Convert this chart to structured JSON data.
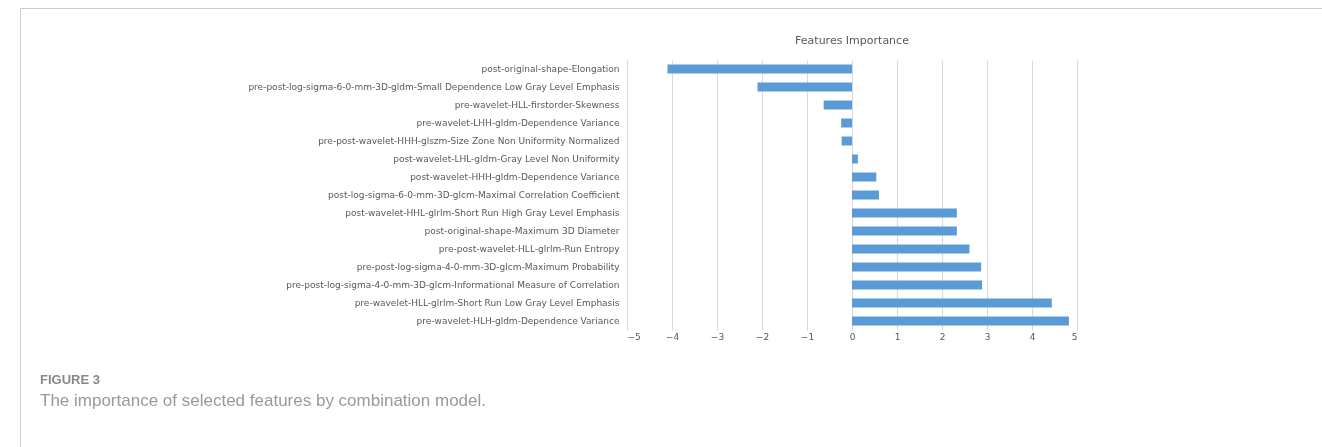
{
  "chart_data": {
    "type": "bar",
    "orientation": "horizontal",
    "title": "Features Importance",
    "categories": [
      "post-original-shape-Elongation",
      "pre-post-log-sigma-6-0-mm-3D-gldm-Small Dependence Low Gray Level Emphasis",
      "pre-wavelet-HLL-firstorder-Skewness",
      "pre-wavelet-LHH-gldm-Dependence Variance",
      "pre-post-wavelet-HHH-glszm-Size Zone Non Uniformity Normalized",
      "post-wavelet-LHL-gldm-Gray Level Non Uniformity",
      "post-wavelet-HHH-gldm-Dependence Variance",
      "post-log-sigma-6-0-mm-3D-glcm-Maximal Correlation Coefficient",
      "post-wavelet-HHL-glrlm-Short Run High Gray Level Emphasis",
      "post-original-shape-Maximum 3D Diameter",
      "pre-post-wavelet-HLL-glrlm-Run Entropy",
      "pre-post-log-sigma-4-0-mm-3D-glcm-Maximum Probability",
      "pre-post-log-sigma-4-0-mm-3D-glcm-Informational Measure of Correlation",
      "pre-wavelet-HLL-glrlm-Short Run Low Gray Level Emphasis",
      "pre-wavelet-HLH-gldm-Dependence Variance"
    ],
    "values": [
      -4.1,
      -2.1,
      -0.63,
      -0.24,
      -0.23,
      0.13,
      0.54,
      0.6,
      2.33,
      2.33,
      2.61,
      2.87,
      2.89,
      4.44,
      4.82
    ],
    "color": "#5b9bd5",
    "xlim": [
      -5,
      5
    ],
    "xticks": [
      -5,
      -4,
      -3,
      -2,
      -1,
      0,
      1,
      2,
      3,
      4,
      5
    ],
    "grid": "x",
    "annotations": [
      "FIGURE 3",
      "The importance of selected features by combination model."
    ]
  }
}
